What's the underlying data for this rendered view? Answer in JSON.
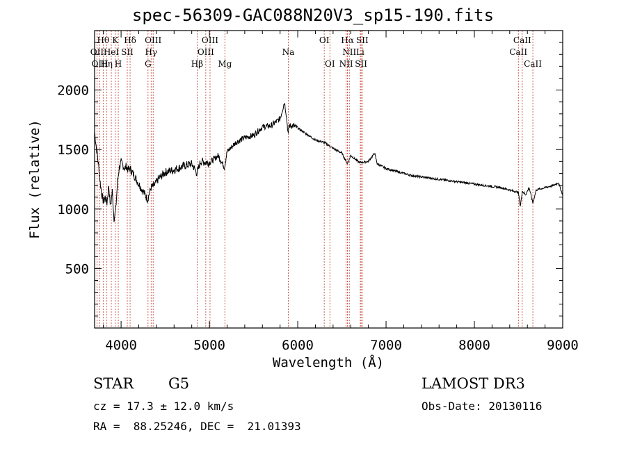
{
  "header": {
    "title": "spec-56309-GAC088N20V3_sp15-190.fits"
  },
  "info": {
    "object_class": "STAR",
    "subclass": "G5",
    "survey": "LAMOST DR3",
    "redshift_line": "cz = 17.3 ± 12.0 km/s",
    "obs_date": "Obs-Date: 20130116",
    "coords_line": "RA =  88.25246, DEC =  21.01393"
  },
  "chart_data": {
    "type": "line",
    "title": "spec-56309-GAC088N20V3_sp15-190.fits",
    "xlabel": "Wavelength (Å)",
    "ylabel": "Flux (relative)",
    "xlim": [
      3700,
      9000
    ],
    "ylim": [
      0,
      2500
    ],
    "xticks": [
      4000,
      5000,
      6000,
      7000,
      8000,
      9000
    ],
    "yticks": [
      500,
      1000,
      1500,
      2000
    ],
    "series": [
      {
        "name": "flux",
        "x": [
          3700,
          3720,
          3740,
          3760,
          3780,
          3800,
          3820,
          3840,
          3860,
          3880,
          3900,
          3920,
          3940,
          3960,
          3980,
          4000,
          4020,
          4040,
          4060,
          4080,
          4100,
          4150,
          4200,
          4250,
          4300,
          4340,
          4380,
          4420,
          4500,
          4600,
          4700,
          4800,
          4860,
          4900,
          5000,
          5100,
          5170,
          5200,
          5300,
          5400,
          5500,
          5600,
          5700,
          5800,
          5850,
          5870,
          5893,
          5900,
          5950,
          6000,
          6100,
          6200,
          6300,
          6400,
          6500,
          6563,
          6600,
          6700,
          6800,
          6870,
          6900,
          7000,
          7100,
          7200,
          7300,
          7400,
          7500,
          7600,
          7700,
          7800,
          7900,
          8000,
          8100,
          8200,
          8300,
          8400,
          8498,
          8520,
          8542,
          8580,
          8620,
          8662,
          8700,
          8800,
          8900,
          8950,
          9000
        ],
        "values": [
          1650,
          1520,
          1400,
          1250,
          1130,
          1060,
          1100,
          1050,
          1200,
          1020,
          1150,
          920,
          1000,
          1230,
          1350,
          1390,
          1370,
          1340,
          1360,
          1330,
          1340,
          1280,
          1210,
          1150,
          1080,
          1180,
          1200,
          1250,
          1310,
          1330,
          1360,
          1380,
          1300,
          1400,
          1390,
          1450,
          1350,
          1480,
          1560,
          1600,
          1620,
          1690,
          1700,
          1760,
          1900,
          1800,
          1620,
          1700,
          1700,
          1680,
          1630,
          1580,
          1560,
          1510,
          1470,
          1380,
          1450,
          1390,
          1400,
          1470,
          1380,
          1340,
          1320,
          1300,
          1280,
          1270,
          1260,
          1250,
          1240,
          1230,
          1220,
          1210,
          1200,
          1190,
          1180,
          1160,
          1140,
          1020,
          1150,
          1120,
          1180,
          1050,
          1160,
          1180,
          1200,
          1220,
          1120
        ]
      }
    ],
    "lines": [
      {
        "label": "Hθ",
        "x": 3797,
        "row": 0
      },
      {
        "label": "OII",
        "x": 3727,
        "row": 1
      },
      {
        "label": "HeI",
        "x": 3889,
        "row": 1
      },
      {
        "label": "OIII",
        "x": 3760,
        "row": 2
      },
      {
        "label": "Hη",
        "x": 3835,
        "row": 2
      },
      {
        "label": "K",
        "x": 3934,
        "row": 0
      },
      {
        "label": "SII",
        "x": 4070,
        "row": 1
      },
      {
        "label": "H",
        "x": 3968,
        "row": 2
      },
      {
        "label": "Hδ",
        "x": 4102,
        "row": 0
      },
      {
        "label": "OIII",
        "x": 4363,
        "row": 0
      },
      {
        "label": "Hγ",
        "x": 4340,
        "row": 1
      },
      {
        "label": "G",
        "x": 4305,
        "row": 2
      },
      {
        "label": "Hβ",
        "x": 4861,
        "row": 2
      },
      {
        "label": "OIII",
        "x": 5007,
        "row": 0
      },
      {
        "label": "OIII",
        "x": 4959,
        "row": 1
      },
      {
        "label": "Mg",
        "x": 5175,
        "row": 2
      },
      {
        "label": "Na",
        "x": 5893,
        "row": 1
      },
      {
        "label": "OI",
        "x": 6300,
        "row": 0
      },
      {
        "label": "OI",
        "x": 6364,
        "row": 2
      },
      {
        "label": "Hα",
        "x": 6563,
        "row": 0
      },
      {
        "label": "SII",
        "x": 6731,
        "row": 0
      },
      {
        "label": "NII",
        "x": 6584,
        "row": 1
      },
      {
        "label": "Li",
        "x": 6708,
        "row": 1
      },
      {
        "label": "NII",
        "x": 6548,
        "row": 2
      },
      {
        "label": "SII",
        "x": 6717,
        "row": 2
      },
      {
        "label": "CaII",
        "x": 8542,
        "row": 0
      },
      {
        "label": "CaII",
        "x": 8498,
        "row": 1
      },
      {
        "label": "CaII",
        "x": 8662,
        "row": 2
      }
    ]
  }
}
